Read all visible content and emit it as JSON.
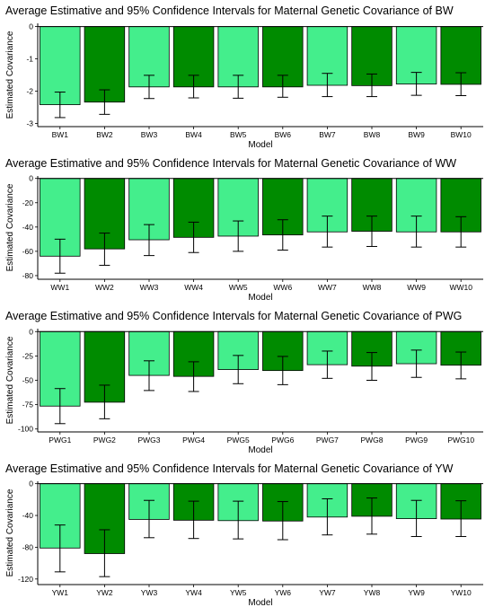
{
  "colors": {
    "light_bar": "#44EE8C",
    "dark_bar": "#008B00",
    "axis": "#000000",
    "text": "#000000"
  },
  "chart_data": [
    {
      "type": "bar",
      "title": "Average Estimative and 95% Confidence Intervals for Maternal Genetic Covariance of BW",
      "xlabel": "Model",
      "ylabel": "Estimated Covariance",
      "categories": [
        "BW1",
        "BW2",
        "BW3",
        "BW4",
        "BW5",
        "BW6",
        "BW7",
        "BW8",
        "BW9",
        "BW10"
      ],
      "values": [
        -2.42,
        -2.34,
        -1.87,
        -1.87,
        -1.87,
        -1.87,
        -1.82,
        -1.83,
        -1.78,
        -1.79
      ],
      "ci_lower": [
        -2.82,
        -2.72,
        -2.23,
        -2.21,
        -2.22,
        -2.19,
        -2.17,
        -2.17,
        -2.13,
        -2.14
      ],
      "ci_upper": [
        -2.03,
        -1.96,
        -1.51,
        -1.51,
        -1.51,
        -1.51,
        -1.45,
        -1.47,
        -1.42,
        -1.43
      ],
      "yticks": [
        0,
        -1,
        -2,
        -3
      ],
      "ylim": [
        -3.1,
        0.1
      ],
      "grid": false,
      "legend": "none"
    },
    {
      "type": "bar",
      "title": "Average Estimative and 95% Confidence Intervals for Maternal Genetic Covariance of WW",
      "xlabel": "Model",
      "ylabel": "Estimated Covariance",
      "categories": [
        "WW1",
        "WW2",
        "WW3",
        "WW4",
        "WW5",
        "WW6",
        "WW7",
        "WW8",
        "WW9",
        "WW10"
      ],
      "values": [
        -64,
        -58,
        -50.5,
        -48.5,
        -47.5,
        -46.5,
        -44,
        -43.5,
        -44,
        -44
      ],
      "ci_lower": [
        -78,
        -71.5,
        -63.5,
        -61,
        -60,
        -59,
        -56.5,
        -56,
        -56.5,
        -56.5
      ],
      "ci_upper": [
        -50,
        -45,
        -38,
        -36,
        -35,
        -34,
        -31,
        -31,
        -31,
        -31.5
      ],
      "yticks": [
        0,
        -20,
        -40,
        -60,
        -80
      ],
      "ylim": [
        -83,
        2
      ],
      "grid": false,
      "legend": "none"
    },
    {
      "type": "bar",
      "title": "Average Estimative and 95% Confidence Intervals for Maternal Genetic Covariance of PWG",
      "xlabel": "Model",
      "ylabel": "Estimated Covariance",
      "categories": [
        "PWG1",
        "PWG2",
        "PWG3",
        "PWG4",
        "PWG5",
        "PWG6",
        "PWG7",
        "PWG8",
        "PWG9",
        "PWG10"
      ],
      "values": [
        -76.5,
        -72.5,
        -45,
        -46,
        -39,
        -40,
        -34,
        -35.5,
        -33,
        -34.5
      ],
      "ci_lower": [
        -94.5,
        -89.5,
        -60.5,
        -61.5,
        -53.5,
        -54.5,
        -48,
        -50,
        -47,
        -48.5
      ],
      "ci_upper": [
        -58.5,
        -55,
        -30,
        -31,
        -24.5,
        -25.5,
        -20,
        -21.5,
        -19,
        -21
      ],
      "yticks": [
        0,
        -25,
        -50,
        -75,
        -100
      ],
      "ylim": [
        -103,
        3
      ],
      "grid": false,
      "legend": "none"
    },
    {
      "type": "bar",
      "title": "Average Estimative and 95% Confidence Intervals for Maternal Genetic Covariance of YW",
      "xlabel": "Model",
      "ylabel": "Estimated Covariance",
      "categories": [
        "YW1",
        "YW2",
        "YW3",
        "YW4",
        "YW5",
        "YW6",
        "YW7",
        "YW8",
        "YW9",
        "YW10"
      ],
      "values": [
        -81,
        -88,
        -45,
        -46,
        -46.5,
        -47,
        -42,
        -41,
        -44,
        -44.5
      ],
      "ci_lower": [
        -111,
        -117,
        -68,
        -69,
        -69.5,
        -70.5,
        -64.5,
        -63.5,
        -66.5,
        -66.5
      ],
      "ci_upper": [
        -52,
        -58,
        -21,
        -22,
        -22,
        -22.5,
        -19,
        -18,
        -21,
        -21.5
      ],
      "yticks": [
        0,
        -40,
        -80,
        -120
      ],
      "ylim": [
        -127,
        3
      ],
      "grid": false,
      "legend": "none"
    }
  ]
}
